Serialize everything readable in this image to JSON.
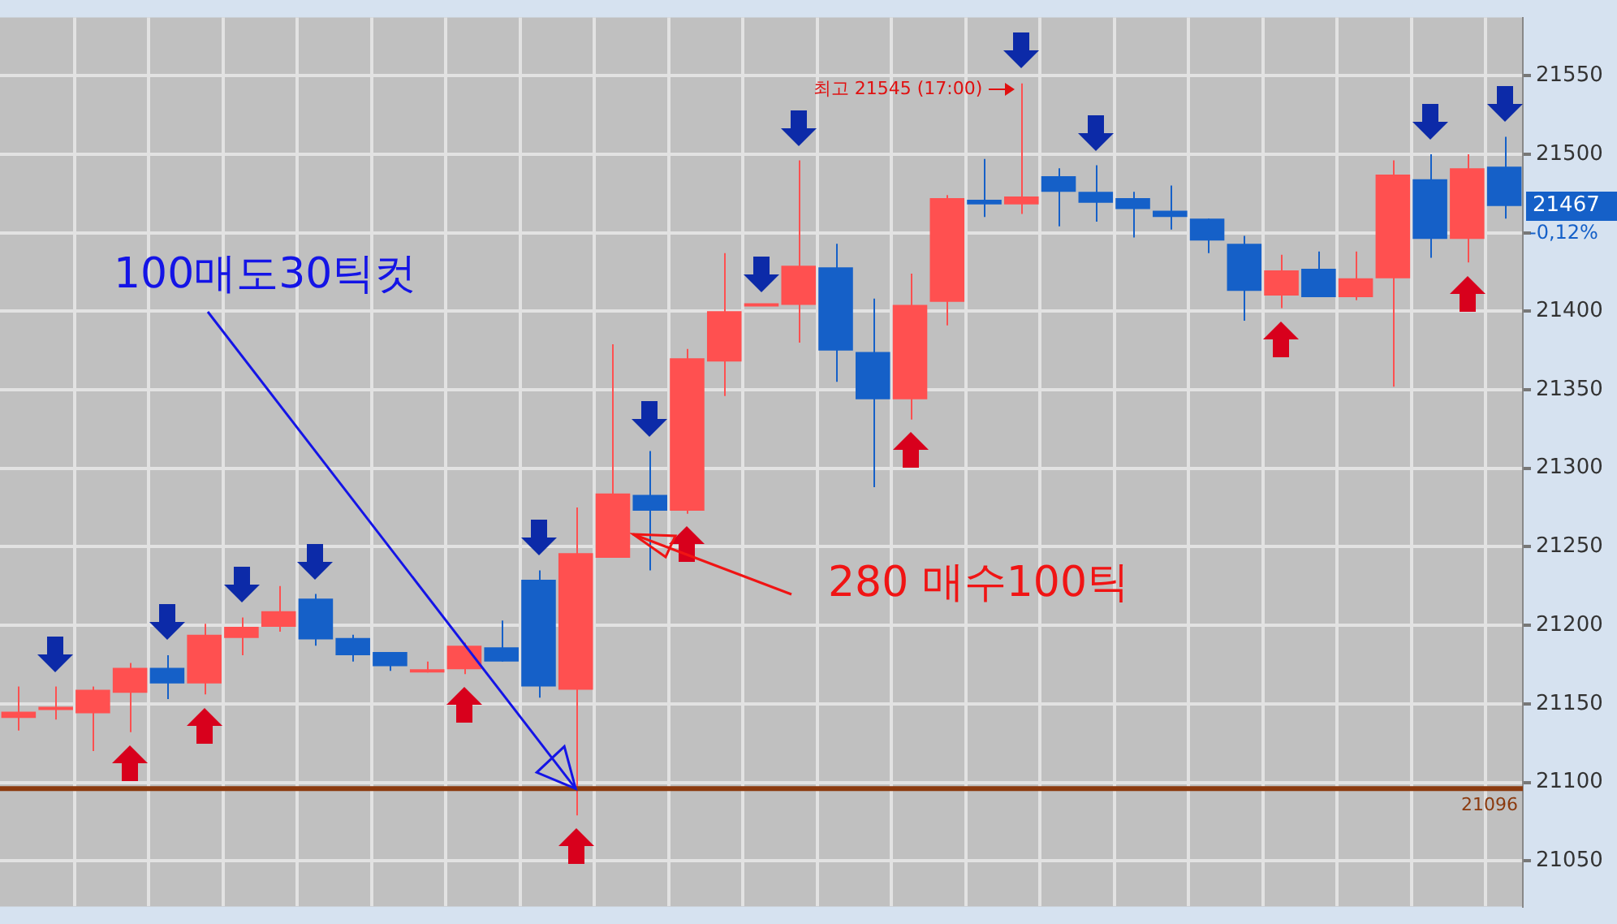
{
  "chart_data": {
    "type": "candlestick",
    "categories": [
      null,
      null,
      null,
      null,
      null,
      null,
      null,
      null,
      null,
      null,
      null,
      null,
      null,
      null,
      null,
      null,
      null,
      null,
      null,
      null,
      null,
      null,
      null,
      null,
      null,
      null,
      null,
      null,
      null,
      null,
      null,
      null,
      null,
      null,
      null,
      null,
      null,
      null,
      null,
      null,
      null
    ],
    "ohlc": [
      [
        21141,
        21161,
        21133,
        21145
      ],
      [
        21146,
        21161,
        21140,
        21146
      ],
      [
        21144,
        21161,
        21120,
        21159
      ],
      [
        21157,
        21176,
        21132,
        21173
      ],
      [
        21173,
        21181,
        21153,
        21163
      ],
      [
        21163,
        21201,
        21156,
        21194
      ],
      [
        21192,
        21205,
        21181,
        21199
      ],
      [
        21199,
        21225,
        21196,
        21209
      ],
      [
        21217,
        21220,
        21187,
        21191
      ],
      [
        21192,
        21194,
        21177,
        21181
      ],
      [
        21183,
        21183,
        21171,
        21174
      ],
      [
        21170,
        21177,
        21170,
        21172
      ],
      [
        21172,
        21189,
        21169,
        21187
      ],
      [
        21186,
        21203,
        21177,
        21177
      ],
      [
        21229,
        21235,
        21154,
        21161
      ],
      [
        21159,
        21275,
        21079,
        21246
      ],
      [
        21243,
        21379,
        21243,
        21284
      ],
      [
        21283,
        21311,
        21235,
        21273
      ],
      [
        21273,
        21376,
        21271,
        21370
      ],
      [
        21368,
        21437,
        21346,
        21400
      ],
      [
        21403,
        21403,
        21403,
        21403
      ],
      [
        21404,
        21496,
        21380,
        21429
      ],
      [
        21428,
        21443,
        21355,
        21375
      ],
      [
        21374,
        21408,
        21288,
        21344
      ],
      [
        21344,
        21424,
        21331,
        21404
      ],
      [
        21406,
        21474,
        21391,
        21472
      ],
      [
        21471,
        21497,
        21460,
        21468
      ],
      [
        21468,
        21545,
        21462,
        21473
      ],
      [
        21486,
        21491,
        21454,
        21476
      ],
      [
        21476,
        21493,
        21457,
        21469
      ],
      [
        21472,
        21476,
        21447,
        21465
      ],
      [
        21464,
        21480,
        21452,
        21460
      ],
      [
        21459,
        21459,
        21437,
        21445
      ],
      [
        21443,
        21448,
        21394,
        21413
      ],
      [
        21410,
        21436,
        21402,
        21426
      ],
      [
        21427,
        21438,
        21409,
        21409
      ],
      [
        21409,
        21438,
        21407,
        21421
      ],
      [
        21421,
        21496,
        21352,
        21487
      ],
      [
        21484,
        21500,
        21434,
        21446
      ],
      [
        21446,
        21500,
        21431,
        21491
      ],
      [
        21492,
        21511,
        21459,
        21467
      ]
    ],
    "colors": [
      "#ff5050",
      "#ff5050",
      "#ff5050",
      "#ff5050",
      "#1560c8",
      "#ff5050",
      "#ff5050",
      "#ff5050",
      "#1560c8",
      "#1560c8",
      "#1560c8",
      "#ff5050",
      "#ff5050",
      "#1560c8",
      "#1560c8",
      "#ff5050",
      "#ff5050",
      "#1560c8",
      "#ff5050",
      "#ff5050",
      "#ff5050",
      "#ff5050",
      "#1560c8",
      "#1560c8",
      "#ff5050",
      "#ff5050",
      "#1560c8",
      "#ff5050",
      "#1560c8",
      "#1560c8",
      "#1560c8",
      "#1560c8",
      "#1560c8",
      "#1560c8",
      "#ff5050",
      "#1560c8",
      "#ff5050",
      "#ff5050",
      "#1560c8",
      "#ff5050",
      "#1560c8"
    ],
    "ylim": [
      21021,
      21587
    ],
    "yticks": [
      21050,
      21100,
      21150,
      21200,
      21250,
      21300,
      21350,
      21400,
      {
        "value": 21450,
        "label": null
      },
      21500,
      21550
    ],
    "grid": true,
    "tick_labels": "y",
    "ref_lines": [
      {
        "axis": "y",
        "value": 21096,
        "label": "21096",
        "color": "#8b3a0e"
      }
    ],
    "annotations": [
      "100매도30틱컷",
      "280 매수100틱",
      "최고 21545 (17:00)",
      "21467",
      "-0,12%"
    ]
  }
}
